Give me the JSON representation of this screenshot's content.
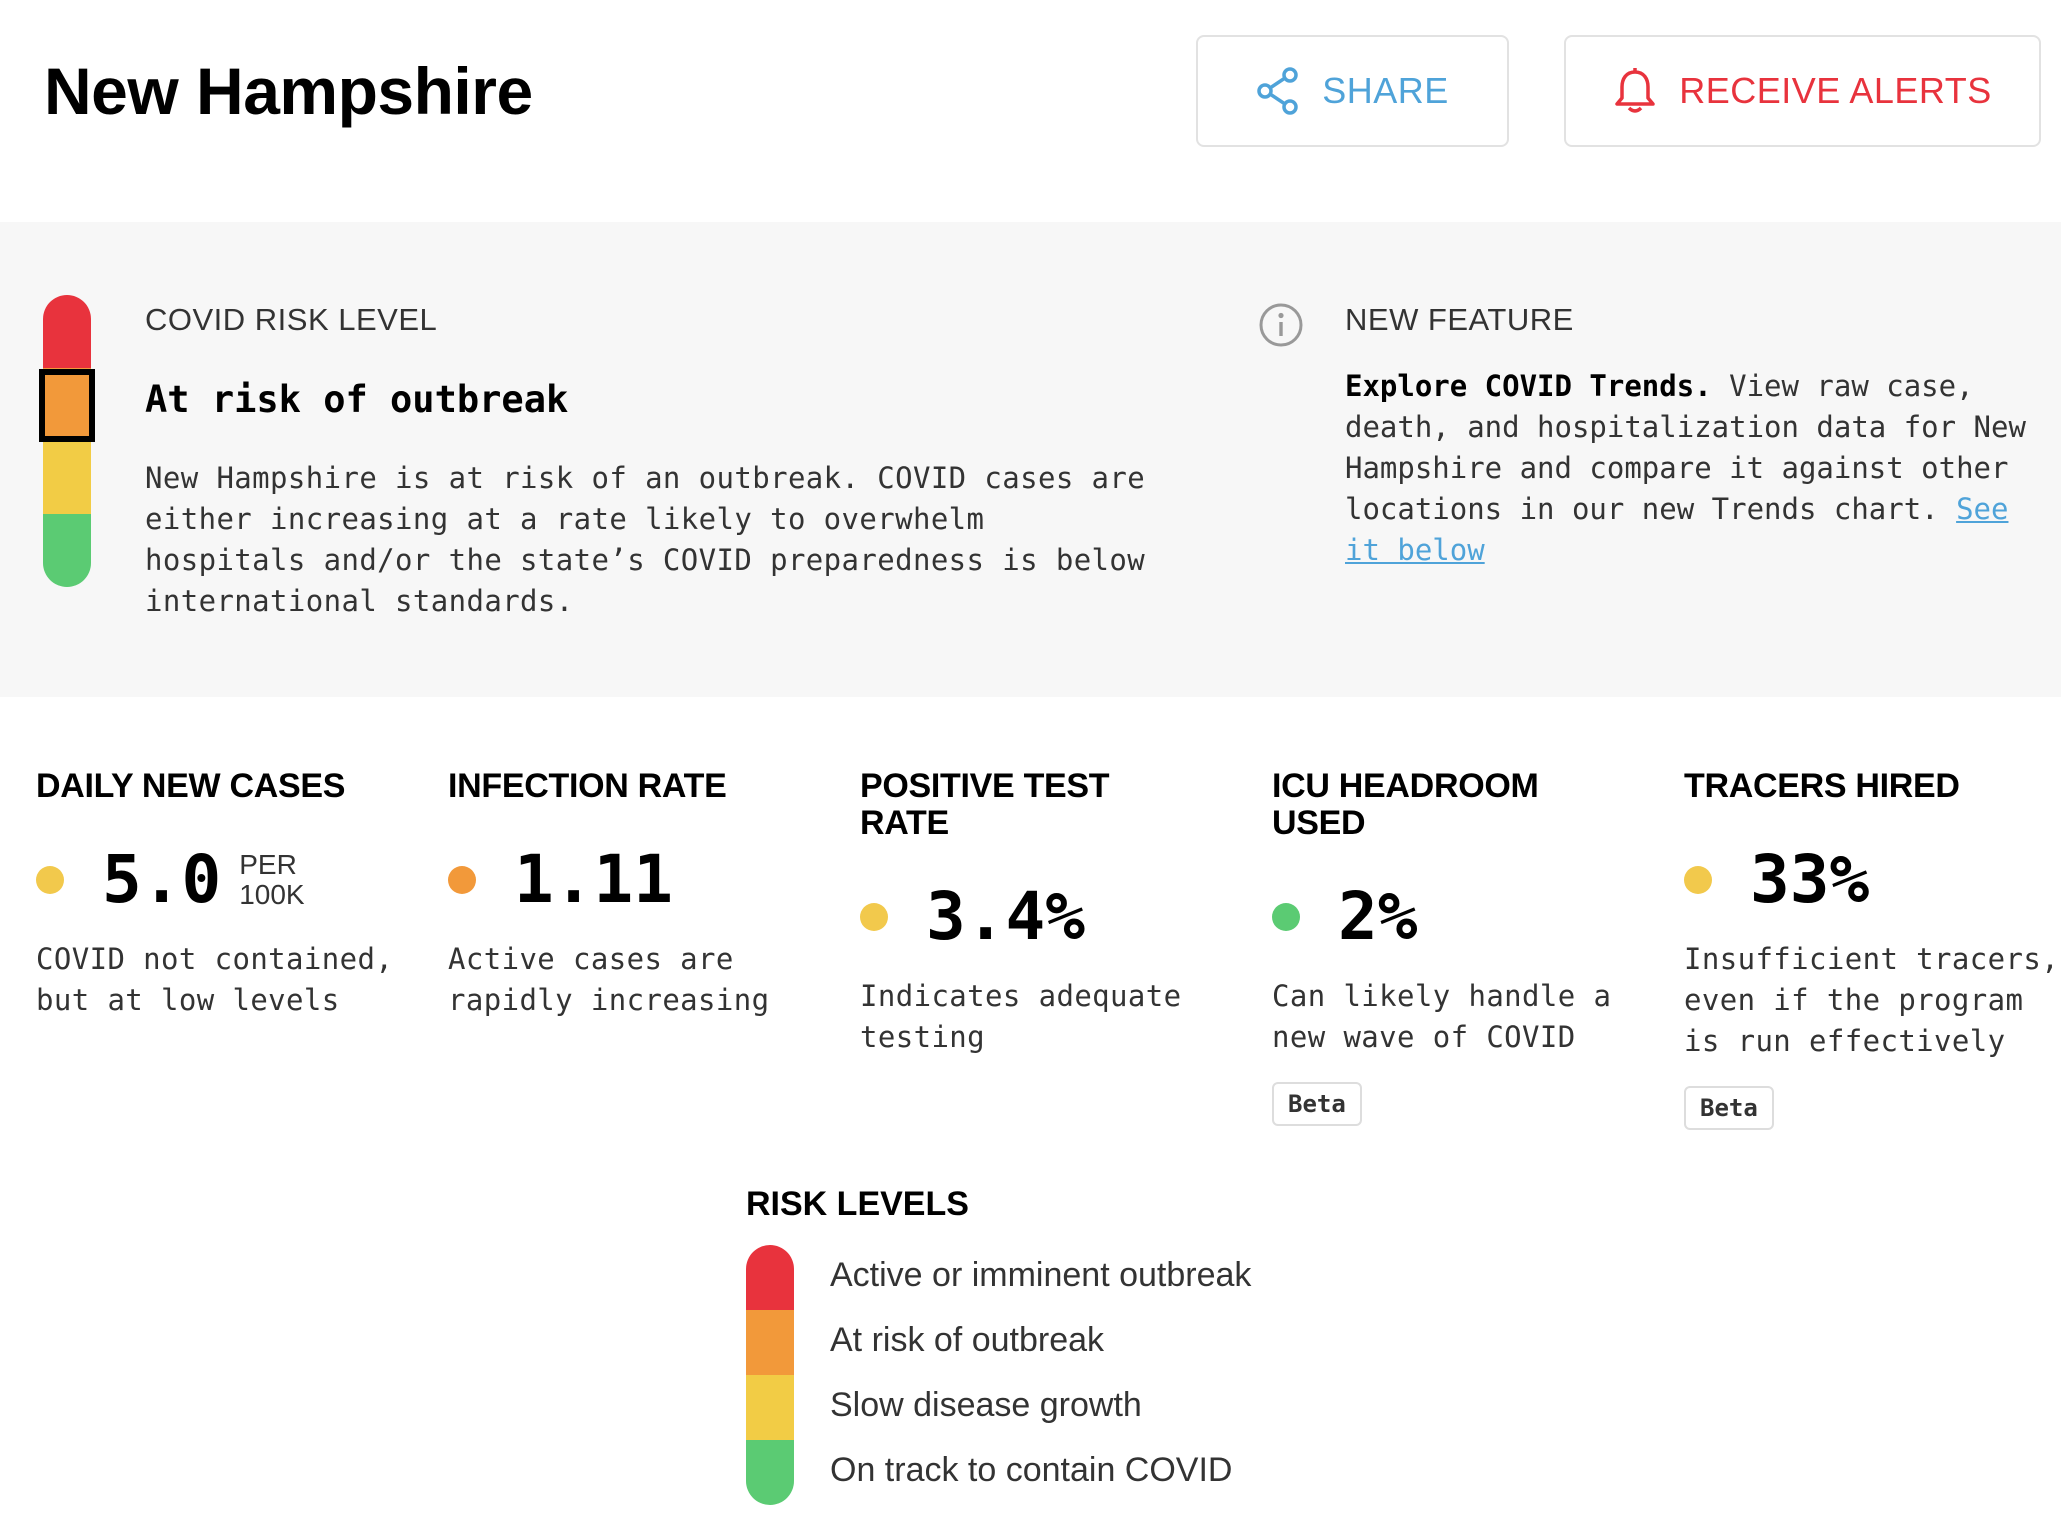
{
  "header": {
    "title": "New Hampshire",
    "share_label": "SHARE",
    "alerts_label": "RECEIVE ALERTS"
  },
  "risk": {
    "kicker": "COVID RISK LEVEL",
    "level": "At risk of outbreak",
    "description": "New Hampshire is at risk of an outbreak. COVID cases are either increasing at a rate likely to overwhelm hospitals and/or the state’s COVID preparedness is below international standards."
  },
  "feature": {
    "kicker": "NEW FEATURE",
    "bold": "Explore COVID Trends.",
    "text": " View raw case, death, and hospitalization data for New Hampshire and compare it against other locations in our new Trends chart. ",
    "link": "See it below"
  },
  "metrics": [
    {
      "title": "DAILY NEW CASES",
      "value": "5.0",
      "unit": "PER 100K",
      "description": "COVID not contained, but at low levels",
      "status_color": "#f2c94c",
      "beta": ""
    },
    {
      "title": "INFECTION RATE",
      "value": "1.11",
      "unit": "",
      "description": "Active cases are rapidly increasing",
      "status_color": "#f2993a",
      "beta": ""
    },
    {
      "title": "POSITIVE TEST RATE",
      "value": "3.4%",
      "unit": "",
      "description": "Indicates adequate testing",
      "status_color": "#f2c94c",
      "beta": ""
    },
    {
      "title": "ICU HEADROOM USED",
      "value": "2%",
      "unit": "",
      "description": "Can likely handle a new wave of COVID",
      "status_color": "#5bcb73",
      "beta": "Beta"
    },
    {
      "title": "TRACERS HIRED",
      "value": "33%",
      "unit": "",
      "description": "Insufficient tracers, even if the program is run effectively",
      "status_color": "#f2c94c",
      "beta": "Beta"
    }
  ],
  "legend": {
    "title": "RISK LEVELS",
    "items": [
      {
        "label": "Active or imminent outbreak",
        "color": "#e8333d"
      },
      {
        "label": "At risk of outbreak",
        "color": "#f2993a"
      },
      {
        "label": "Slow disease growth",
        "color": "#f2cc45"
      },
      {
        "label": "On track to contain COVID",
        "color": "#5bcb73"
      }
    ]
  },
  "colors": {
    "red": "#e8333d",
    "orange": "#f2993a",
    "yellow": "#f2cc45",
    "green": "#5bcb73",
    "link_blue": "#4fa3d9"
  }
}
